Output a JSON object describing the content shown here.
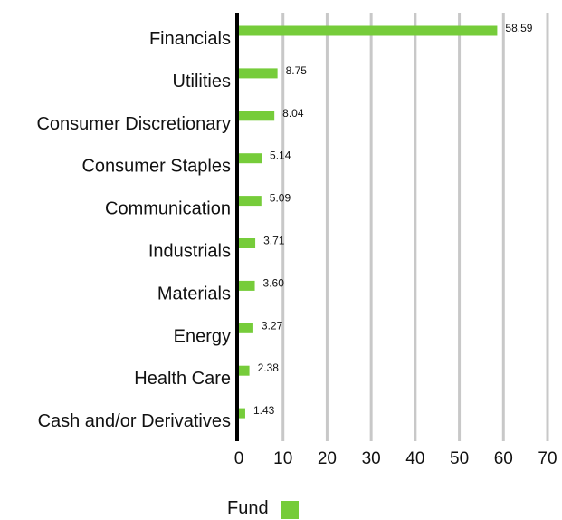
{
  "chart_data": {
    "type": "bar",
    "orientation": "horizontal",
    "categories": [
      "Financials",
      "Utilities",
      "Consumer Discretionary",
      "Consumer Staples",
      "Communication",
      "Industrials",
      "Materials",
      "Energy",
      "Health Care",
      "Cash and/or Derivatives"
    ],
    "series": [
      {
        "name": "Fund",
        "color": "#76cc3a",
        "values": [
          58.59,
          8.75,
          8.04,
          5.14,
          5.09,
          3.71,
          3.6,
          3.27,
          2.38,
          1.43
        ],
        "labels": [
          "58.59",
          "8.75",
          "8.04",
          "5.14",
          "5.09",
          "3.71",
          "3.60",
          "3.27",
          "2.38",
          "1.43"
        ]
      }
    ],
    "xlim": [
      0,
      70
    ],
    "xticks": [
      0,
      10,
      20,
      30,
      40,
      50,
      60,
      70
    ],
    "grid": "vertical",
    "legend_position": "bottom-left"
  }
}
